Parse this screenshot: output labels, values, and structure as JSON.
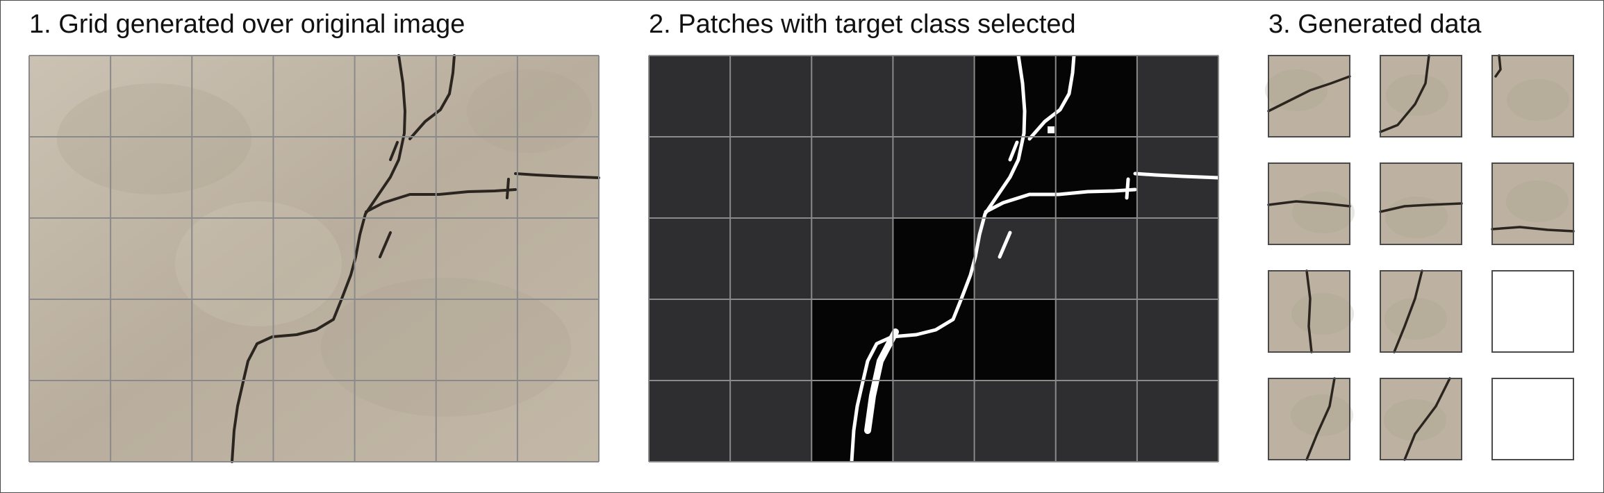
{
  "panels": [
    {
      "title": "1. Grid generated over original image",
      "grid": {
        "cols": 7,
        "rows": 5
      }
    },
    {
      "title": "2. Patches with target class selected",
      "grid": {
        "cols": 7,
        "rows": 5
      }
    },
    {
      "title": "3. Generated data",
      "grid": {
        "cols": 3,
        "rows": 4
      }
    }
  ],
  "colors": {
    "concrete": "#bdb2a1",
    "crack": "#2b2520",
    "mask_background": "#2e2e30",
    "mask_selected": "#050505",
    "mask_crack": "#ffffff",
    "grid_line": "#8a8a8a",
    "border": "#4a4a4a"
  },
  "selected_patches": [
    [
      0,
      4
    ],
    [
      0,
      5
    ],
    [
      1,
      4
    ],
    [
      1,
      5
    ],
    [
      2,
      3
    ],
    [
      3,
      2
    ],
    [
      3,
      3
    ],
    [
      3,
      4
    ],
    [
      4,
      2
    ]
  ],
  "generated_tiles": [
    {
      "kind": "patch"
    },
    {
      "kind": "patch"
    },
    {
      "kind": "patch"
    },
    {
      "kind": "patch"
    },
    {
      "kind": "patch"
    },
    {
      "kind": "patch"
    },
    {
      "kind": "patch"
    },
    {
      "kind": "patch"
    },
    {
      "kind": "empty"
    },
    {
      "kind": "patch"
    },
    {
      "kind": "patch"
    },
    {
      "kind": "empty"
    }
  ]
}
